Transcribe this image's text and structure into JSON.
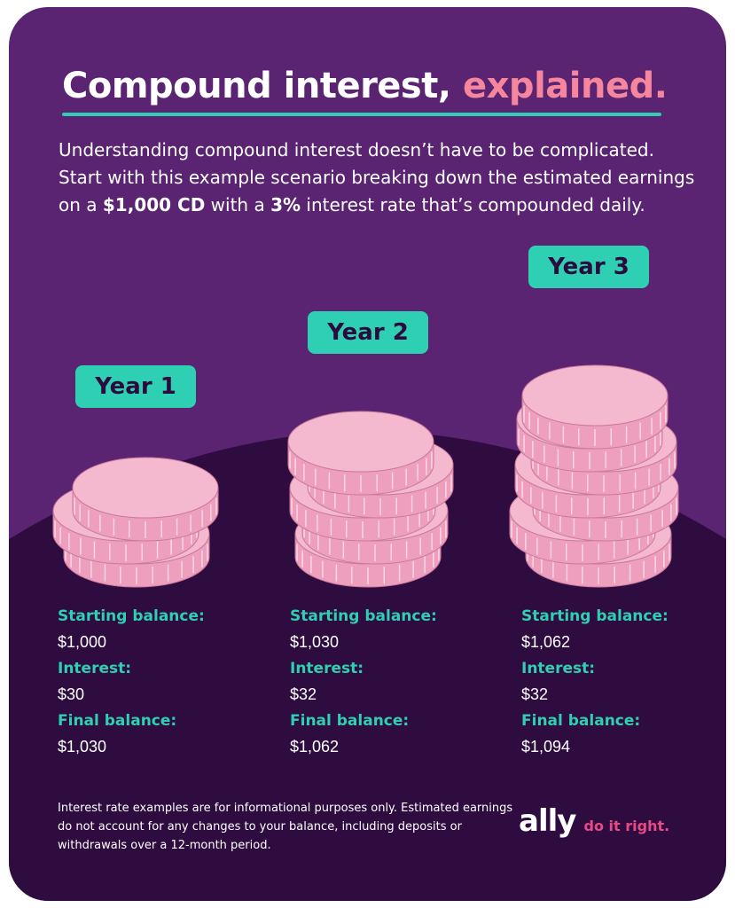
{
  "title": {
    "main": "Compound interest,",
    "accent": "explained."
  },
  "intro": {
    "part1": "Understanding compound interest doesn’t have to be complicated. Start with this example scenario breaking down the estimated earnings on a ",
    "bold1": "$1,000 CD",
    "part2": " with a ",
    "bold2": "3%",
    "part3": " interest rate that’s compounded daily."
  },
  "years": [
    {
      "label": "Year 1",
      "starting_label": "Starting balance:",
      "starting_value": "$1,000",
      "interest_label": "Interest:",
      "interest_value": "$30",
      "final_label": "Final balance:",
      "final_value": "$1,030",
      "coin_count": 3
    },
    {
      "label": "Year 2",
      "starting_label": "Starting balance:",
      "starting_value": "$1,030",
      "interest_label": "Interest:",
      "interest_value": "$32",
      "final_label": "Final balance:",
      "final_value": "$1,062",
      "coin_count": 5
    },
    {
      "label": "Year 3",
      "starting_label": "Starting balance:",
      "starting_value": "$1,062",
      "interest_label": "Interest:",
      "interest_value": "$32",
      "final_label": "Final balance:",
      "final_value": "$1,094",
      "coin_count": 7
    }
  ],
  "footnote": "Interest rate examples are for informational purposes only. Estimated earnings do not account for any changes to your balance, including deposits or withdrawals over a 12-month period.",
  "logo": {
    "word": "ally",
    "tagline": "do it right."
  },
  "colors": {
    "background_top": "#5a2472",
    "background_bottom": "#2f0c40",
    "accent_teal": "#2ecfb2",
    "accent_pink": "#f6869d",
    "coin_face": "#f4b9cf",
    "coin_side": "#ef9fbe",
    "coin_stripe": "#fde6ef",
    "coin_outline": "#c97a9d",
    "logo_tag": "#e84a86"
  }
}
